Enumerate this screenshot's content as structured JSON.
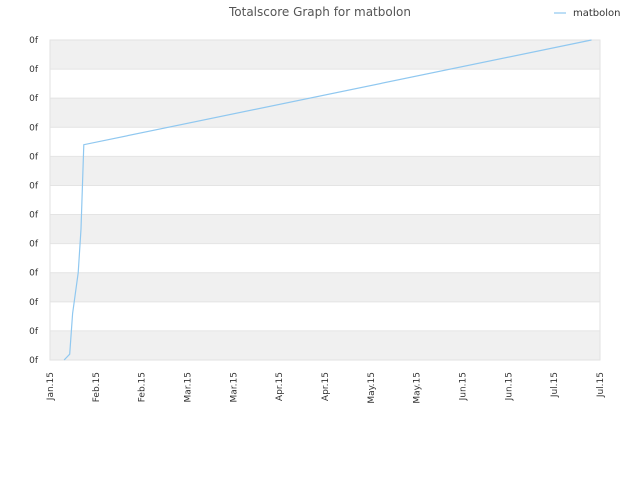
{
  "chart_data": {
    "type": "line",
    "title": "Totalscore Graph for matbolon",
    "legend": {
      "position": "top-right",
      "entries": [
        "matbolon"
      ]
    },
    "series_color": "#90c8f0",
    "grid": true,
    "x_tick_labels": [
      "Jan.15",
      "Feb.15",
      "Feb.15",
      "Mar.15",
      "Mar.15",
      "Apr.15",
      "Apr.15",
      "May.15",
      "May.15",
      "Jun.15",
      "Jun.15",
      "Jul.15",
      "Jul.15"
    ],
    "y_tick_labels": [
      "0f",
      "0f",
      "0f",
      "0f",
      "0f",
      "0f",
      "0f",
      "0f",
      "0f",
      "0f",
      "0f",
      "0f"
    ],
    "y_band_count": 11,
    "xlim": [
      "2015-01-01",
      "2015-07-15"
    ],
    "ylim": [
      0,
      11
    ],
    "series": [
      {
        "name": "matbolon",
        "points": [
          {
            "x": "2015-01-06",
            "y": 0.0
          },
          {
            "x": "2015-01-08",
            "y": 0.2
          },
          {
            "x": "2015-01-09",
            "y": 1.6
          },
          {
            "x": "2015-01-11",
            "y": 3.0
          },
          {
            "x": "2015-01-12",
            "y": 4.5
          },
          {
            "x": "2015-01-13",
            "y": 7.4
          },
          {
            "x": "2015-07-12",
            "y": 11.0
          }
        ]
      }
    ]
  }
}
